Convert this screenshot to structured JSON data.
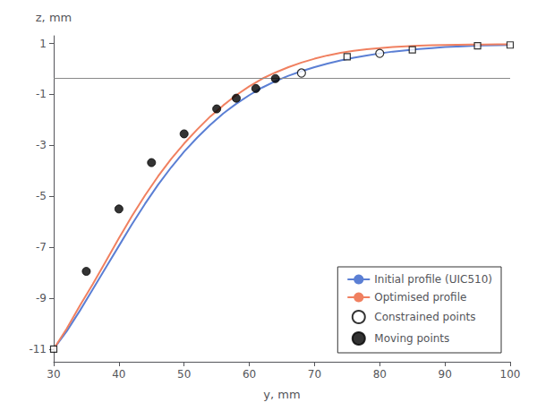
{
  "chart_data": {
    "type": "line",
    "xlabel": "y, mm",
    "ylabel": "z, mm",
    "xlim": [
      30,
      100
    ],
    "ylim": [
      -11.5,
      1.3
    ],
    "xticks": [
      30,
      40,
      50,
      60,
      70,
      80,
      90,
      100
    ],
    "yticks": [
      -11,
      -9,
      -7,
      -5,
      -3,
      -1,
      1
    ],
    "hline": -0.35,
    "grid": false,
    "legend": "lower right",
    "series": [
      {
        "name": "Initial profile (UIC510)",
        "type": "line",
        "color": "#5B7FD4",
        "x": [
          30,
          32,
          34,
          36,
          38,
          40,
          42,
          44,
          46,
          48,
          50,
          52,
          54,
          56,
          58,
          60,
          62,
          64,
          66,
          68,
          70,
          72,
          74,
          76,
          78,
          80,
          82,
          84,
          86,
          88,
          90,
          92,
          94,
          96,
          98,
          100
        ],
        "values": [
          -11.0,
          -10.3,
          -9.5,
          -8.65,
          -7.8,
          -6.95,
          -6.1,
          -5.3,
          -4.55,
          -3.87,
          -3.25,
          -2.7,
          -2.2,
          -1.75,
          -1.37,
          -1.03,
          -0.73,
          -0.48,
          -0.27,
          -0.09,
          0.07,
          0.21,
          0.33,
          0.44,
          0.53,
          0.61,
          0.68,
          0.73,
          0.78,
          0.82,
          0.86,
          0.88,
          0.9,
          0.92,
          0.93,
          0.94
        ]
      },
      {
        "name": "Optimised profile",
        "type": "line",
        "color": "#F08060",
        "x": [
          30,
          32,
          34,
          36,
          38,
          40,
          42,
          44,
          46,
          48,
          50,
          52,
          54,
          56,
          58,
          60,
          62,
          64,
          66,
          68,
          70,
          72,
          74,
          76,
          78,
          80,
          82,
          84,
          86,
          88,
          90,
          92,
          94,
          96,
          98,
          100
        ],
        "values": [
          -11.0,
          -10.2,
          -9.3,
          -8.45,
          -7.55,
          -6.65,
          -5.78,
          -4.97,
          -4.22,
          -3.54,
          -2.93,
          -2.38,
          -1.87,
          -1.43,
          -1.03,
          -0.68,
          -0.38,
          -0.14,
          0.07,
          0.25,
          0.4,
          0.53,
          0.63,
          0.71,
          0.77,
          0.82,
          0.86,
          0.89,
          0.91,
          0.93,
          0.94,
          0.95,
          0.96,
          0.96,
          0.97,
          0.97
        ]
      },
      {
        "type": "scatter",
        "marker": "open_square",
        "color": "#000000",
        "x": [
          30,
          75,
          85,
          95,
          100
        ],
        "values": [
          -11.0,
          0.48,
          0.75,
          0.91,
          0.94
        ]
      },
      {
        "name": "Constrained points",
        "type": "scatter",
        "marker": "open_circle",
        "color": "#000000",
        "x": [
          68,
          80
        ],
        "values": [
          -0.16,
          0.61
        ]
      },
      {
        "name": "Moving points",
        "type": "scatter",
        "marker": "circle",
        "color": "#000000",
        "x": [
          35,
          40,
          45,
          50,
          55,
          58,
          61,
          64
        ],
        "values": [
          -7.95,
          -5.5,
          -3.68,
          -2.55,
          -1.57,
          -1.15,
          -0.77,
          -0.38
        ]
      }
    ]
  }
}
